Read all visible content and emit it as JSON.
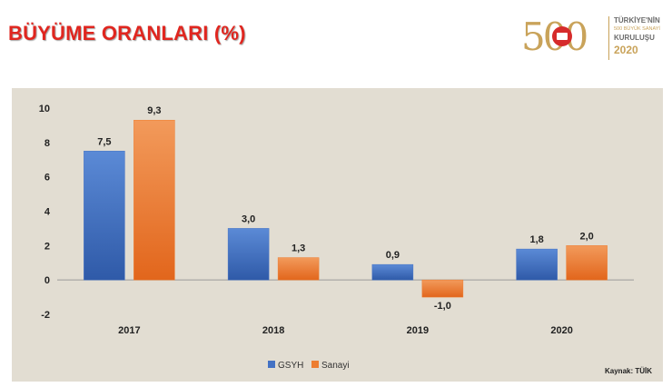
{
  "header": {
    "title": "BÜYÜME ORANLARI (%)"
  },
  "logo": {
    "number": "500",
    "line1": "TÜRKİYE'NİN",
    "line2": "500 BÜYÜK SANAYİ",
    "line3": "KURULUŞU",
    "line4": "2020"
  },
  "source": "Kaynak: TÜİK",
  "colors": {
    "gsyh": "#4472c4",
    "sanayi": "#ed7d31",
    "panel": "#e2ddd2",
    "title": "#e0261f"
  },
  "chart_data": {
    "type": "bar",
    "title": "",
    "xlabel": "",
    "ylabel": "",
    "categories": [
      "2017",
      "2018",
      "2019",
      "2020"
    ],
    "series": [
      {
        "name": "GSYH",
        "values": [
          7.5,
          3.0,
          0.9,
          1.8
        ],
        "labels": [
          "7,5",
          "3,0",
          "0,9",
          "1,8"
        ]
      },
      {
        "name": "Sanayi",
        "values": [
          9.3,
          1.3,
          -1.0,
          2.0
        ],
        "labels": [
          "9,3",
          "1,3",
          "-1,0",
          "2,0"
        ]
      }
    ],
    "ylim": [
      -2,
      10
    ],
    "yticks": [
      -2,
      0,
      2,
      4,
      6,
      8,
      10
    ],
    "grid": false,
    "legend": "bottom-center"
  }
}
